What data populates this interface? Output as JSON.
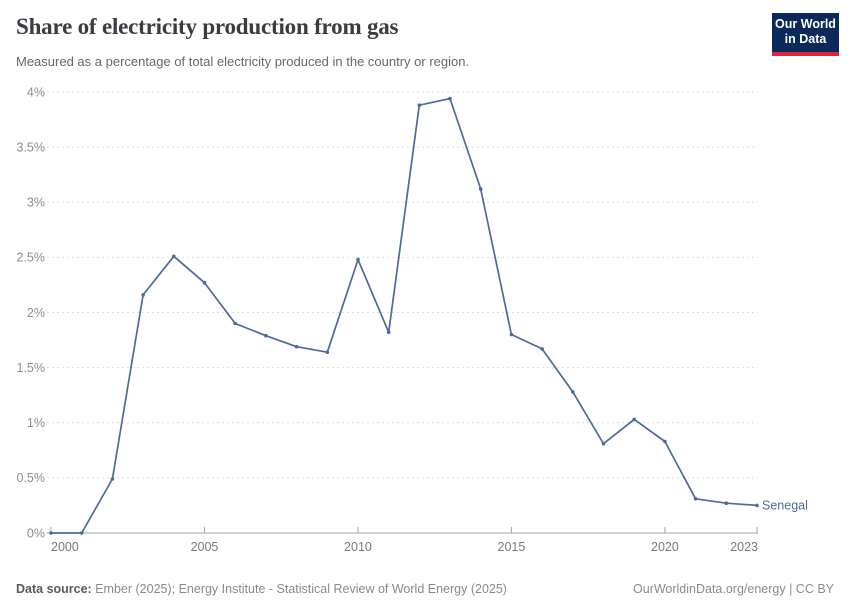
{
  "header": {
    "title": "Share of electricity production from gas",
    "subtitle": "Measured as a percentage of total electricity produced in the country or region.",
    "logo": {
      "line1": "Our World",
      "line2": "in Data",
      "bg_color": "#0B2A5B",
      "accent_color": "#E0243C"
    }
  },
  "chart_data": {
    "type": "line",
    "title": "Share of electricity production from gas",
    "subtitle": "Measured as a percentage of total electricity produced in the country or region.",
    "x": [
      2000,
      2001,
      2002,
      2003,
      2004,
      2005,
      2006,
      2007,
      2008,
      2009,
      2010,
      2011,
      2012,
      2013,
      2014,
      2015,
      2016,
      2017,
      2018,
      2019,
      2020,
      2021,
      2022,
      2023
    ],
    "series": [
      {
        "name": "Senegal",
        "color": "#4C6A9C",
        "values": [
          0,
          0,
          0.49,
          2.16,
          2.51,
          2.27,
          1.9,
          1.79,
          1.69,
          1.64,
          2.48,
          1.82,
          3.88,
          3.94,
          3.12,
          1.8,
          1.67,
          1.28,
          0.81,
          1.03,
          0.83,
          0.31,
          0.27,
          0.25
        ]
      }
    ],
    "xlim": [
      2000,
      2023
    ],
    "ylim": [
      0,
      4
    ],
    "xlabel": "",
    "ylabel": "",
    "y_ticks": [
      {
        "value": 0,
        "label": "0%"
      },
      {
        "value": 0.5,
        "label": "0.5%"
      },
      {
        "value": 1,
        "label": "1%"
      },
      {
        "value": 1.5,
        "label": "1.5%"
      },
      {
        "value": 2,
        "label": "2%"
      },
      {
        "value": 2.5,
        "label": "2.5%"
      },
      {
        "value": 3,
        "label": "3%"
      },
      {
        "value": 3.5,
        "label": "3.5%"
      },
      {
        "value": 4,
        "label": "4%"
      }
    ],
    "x_ticks": [
      {
        "value": 2000,
        "label": "2000"
      },
      {
        "value": 2005,
        "label": "2005"
      },
      {
        "value": 2010,
        "label": "2010"
      },
      {
        "value": 2015,
        "label": "2015"
      },
      {
        "value": 2020,
        "label": "2020"
      },
      {
        "value": 2023,
        "label": "2023"
      }
    ],
    "grid": "horizontal-dashed",
    "legend_position": "end-of-line-label",
    "colors": {
      "gridline": "#dedede",
      "axis_line": "#a6a6a6",
      "y_tick_label": "#8c8c8c",
      "x_tick_label": "#787878"
    }
  },
  "footer": {
    "source_label": "Data source:",
    "source_text": " Ember (2025); Energy Institute - Statistical Review of World Energy (2025)",
    "credit": "OurWorldinData.org/energy | CC BY"
  }
}
